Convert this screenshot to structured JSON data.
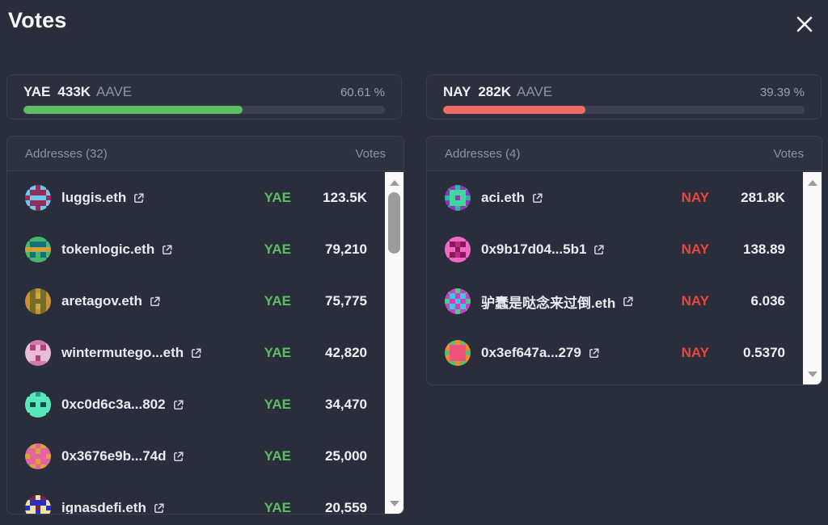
{
  "modal": {
    "title": "Votes",
    "close_icon": "x-icon"
  },
  "colors": {
    "yae_text": "#5cbe62",
    "yae_bar": "#5fbd64",
    "nay_text": "#e8473f",
    "nay_bar": "#ee6c66"
  },
  "summary": {
    "yae": {
      "label": "YAE",
      "amount": "433K",
      "token": "AAVE",
      "percent_label": "60.61 %",
      "percent_value": 60.61
    },
    "nay": {
      "label": "NAY",
      "amount": "282K",
      "token": "AAVE",
      "percent_label": "39.39 %",
      "percent_value": 39.39
    }
  },
  "lists": {
    "yae": {
      "addresses_header": "Addresses (32)",
      "votes_header": "Votes",
      "scrollbar_thumb": true,
      "rows": [
        {
          "name": "luggis.eth",
          "vote": "YAE",
          "value": "123.5K",
          "avatar": {
            "colors": [
              "#2e4a8f",
              "#8e2f5d",
              "#76c7e6"
            ],
            "pattern": [
              "02120",
              "21112",
              "12221",
              "21112",
              "02120"
            ]
          }
        },
        {
          "name": "tokenlogic.eth",
          "vote": "YAE",
          "value": "79,210",
          "avatar": {
            "colors": [
              "#1a6f7d",
              "#46b869",
              "#c9a33b"
            ],
            "pattern": [
              "01110",
              "10001",
              "22222",
              "10101",
              "01110"
            ]
          }
        },
        {
          "name": "aretagov.eth",
          "vote": "YAE",
          "value": "75,775",
          "avatar": {
            "colors": [
              "#cf8f35",
              "#736d26",
              "#caa94b"
            ],
            "pattern": [
              "01010",
              "01210",
              "01110",
              "01210",
              "01010"
            ]
          }
        },
        {
          "name": "wintermutego...eth",
          "vote": "YAE",
          "value": "42,820",
          "avatar": {
            "colors": [
              "#e7bcd7",
              "#d17bb0",
              "#b3407f"
            ],
            "pattern": [
              "01110",
              "02020",
              "00000",
              "00200",
              "01110"
            ]
          }
        },
        {
          "name": "0xc0d6c3a...802",
          "vote": "YAE",
          "value": "34,470",
          "avatar": {
            "colors": [
              "#0d4f4c",
              "#57e8bc",
              "#28a08a"
            ],
            "pattern": [
              "01210",
              "11111",
              "10101",
              "11111",
              "01110"
            ]
          }
        },
        {
          "name": "0x3676e9b...74d",
          "vote": "YAE",
          "value": "25,000",
          "avatar": {
            "colors": [
              "#5aa653",
              "#e564a1",
              "#dfa238"
            ],
            "pattern": [
              "02120",
              "11211",
              "21112",
              "11211",
              "02120"
            ]
          }
        },
        {
          "name": "ignasdefi.eth",
          "vote": "YAE",
          "value": "20,559",
          "avatar": {
            "colors": [
              "#7c2444",
              "#2b2fc1",
              "#efe3a8"
            ],
            "pattern": [
              "10201",
              "21112",
              "12021",
              "22122",
              "10201"
            ]
          }
        }
      ]
    },
    "nay": {
      "addresses_header": "Addresses (4)",
      "votes_header": "Votes",
      "scrollbar_thumb": false,
      "rows": [
        {
          "name": "aci.eth",
          "vote": "NAY",
          "value": "281.8K",
          "avatar": {
            "colors": [
              "#2fb5a6",
              "#9038b8",
              "#44d6a0"
            ],
            "pattern": [
              "01010",
              "12221",
              "02120",
              "12221",
              "01010"
            ]
          }
        },
        {
          "name": "0x9b17d04...5b1",
          "vote": "NAY",
          "value": "138.89",
          "avatar": {
            "colors": [
              "#c0248e",
              "#ef6ac2",
              "#8c1a56"
            ],
            "pattern": [
              "01110",
              "12021",
              "11211",
              "12021",
              "01110"
            ]
          }
        },
        {
          "name": "驴蠢是哒念来过倒.eth",
          "vote": "NAY",
          "value": "6.036",
          "avatar": {
            "colors": [
              "#46d08a",
              "#cb3fc0",
              "#3fc7e0"
            ],
            "pattern": [
              "01010",
              "12121",
              "01210",
              "12121",
              "01010"
            ]
          }
        },
        {
          "name": "0x3ef647a...279",
          "vote": "NAY",
          "value": "0.5370",
          "avatar": {
            "colors": [
              "#f28a2e",
              "#f0527c",
              "#58c06a"
            ],
            "pattern": [
              "02020",
              "01110",
              "21112",
              "01110",
              "02020"
            ]
          }
        }
      ]
    }
  }
}
